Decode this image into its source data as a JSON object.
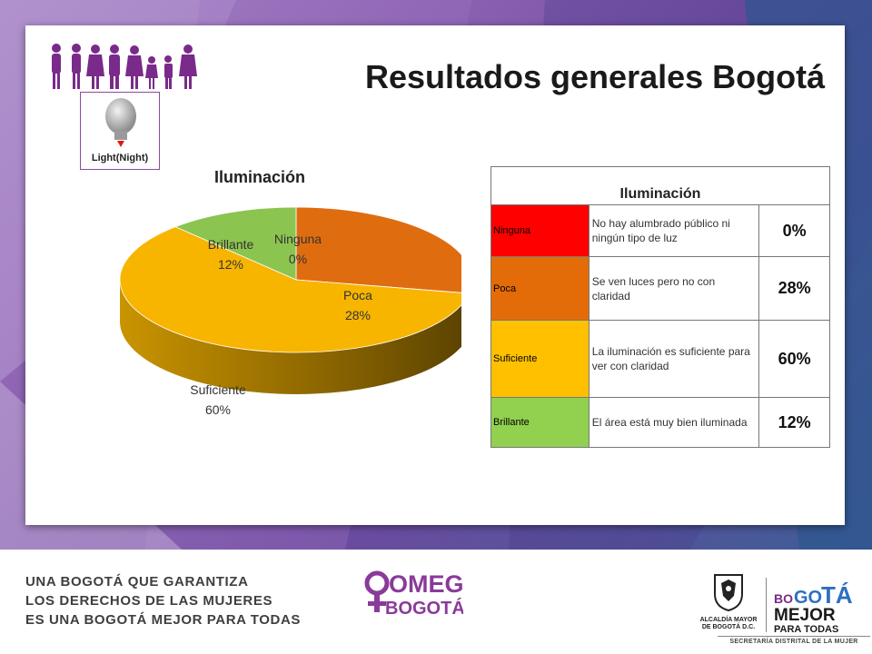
{
  "slide": {
    "title": "Resultados generales Bogotá",
    "badge_label": "Light(Night)"
  },
  "chart_data": {
    "type": "pie",
    "title": "Iluminación",
    "categories": [
      "Ninguna",
      "Poca",
      "Suficiente",
      "Brillante"
    ],
    "values": [
      0,
      28,
      60,
      12
    ],
    "labels": [
      "0%",
      "28%",
      "60%",
      "12%"
    ],
    "colors": [
      "#e03030",
      "#e06c10",
      "#f7b500",
      "#8cc450"
    ],
    "style": "3d",
    "legend": "none"
  },
  "table": {
    "header": "Iluminación",
    "rows": [
      {
        "category": "Ninguna",
        "description": "No hay alumbrado público ni ningún tipo de luz",
        "percent": "0%",
        "color": "#ff0000"
      },
      {
        "category": "Poca",
        "description": "Se ven luces pero no con claridad",
        "percent": "28%",
        "color": "#e36c09"
      },
      {
        "category": "Suficiente",
        "description": "La iluminación es suficiente para ver con claridad",
        "percent": "60%",
        "color": "#ffc000"
      },
      {
        "category": "Brillante",
        "description": "El área está muy bien iluminada",
        "percent": "12%",
        "color": "#92d050"
      }
    ]
  },
  "footer": {
    "slogan_lines": [
      "UNA BOGOTÁ QUE GARANTIZA",
      "LOS DERECHOS DE LAS MUJERES",
      "ES UNA BOGOTÁ MEJOR PARA TODAS"
    ],
    "omeg_top": "OMEG",
    "omeg_bottom": "BOGOTÁ",
    "alcaldia_line1": "ALCALDÍA MAYOR",
    "alcaldia_line2": "DE BOGOTÁ D.C.",
    "bogota_bo": "BO",
    "bogota_go": "GO",
    "bogota_ta": "TÁ",
    "bogota_mejor": "MEJOR",
    "bogota_para": "PARA TODAS",
    "secretaria": "SECRETARÍA DISTRITAL DE LA MUJER"
  },
  "icons": {
    "family": "family-figures-icon",
    "lightbulb": "lightbulb-icon",
    "female": "female-symbol-icon",
    "crest": "coat-of-arms-icon"
  },
  "colors": {
    "purple": "#8a3a9a",
    "accent_purple": "#7a2a8a",
    "background_purple": "#8d63b3",
    "background_blue": "#3d5d96"
  }
}
